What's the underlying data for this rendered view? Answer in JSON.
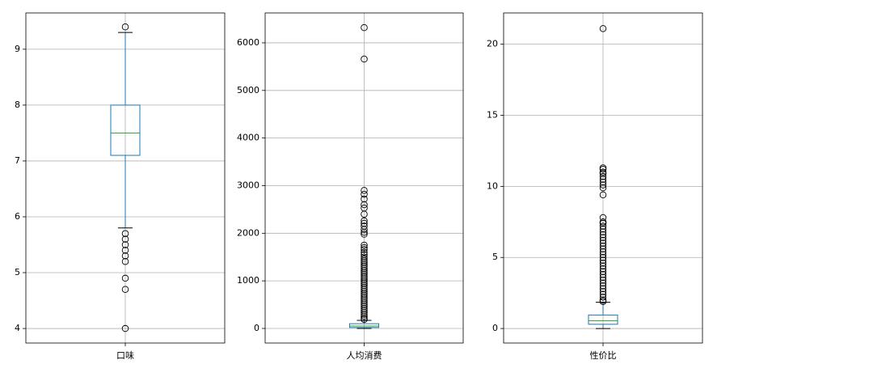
{
  "chart_data": [
    {
      "type": "box",
      "categories": [
        "口味"
      ],
      "ylim": [
        3.74,
        9.65
      ],
      "yticks": [
        4,
        5,
        6,
        7,
        8,
        9
      ],
      "grid": true,
      "box_color": "#1f77b4",
      "median_color": "#2ca02c",
      "boxes": [
        {
          "whislo": 5.8,
          "q1": 7.1,
          "median": 7.5,
          "q3": 8.0,
          "whishi": 9.3,
          "fliers": [
            9.4,
            5.7,
            5.6,
            5.5,
            5.4,
            5.3,
            5.2,
            4.9,
            4.7,
            4.0
          ]
        }
      ]
    },
    {
      "type": "box",
      "categories": [
        "人均消费"
      ],
      "ylim": [
        -306,
        6628
      ],
      "yticks": [
        0,
        1000,
        2000,
        3000,
        4000,
        5000,
        6000
      ],
      "grid": true,
      "box_color": "#1f77b4",
      "median_color": "#2ca02c",
      "boxes": [
        {
          "whislo": 0,
          "q1": 20,
          "median": 50,
          "q3": 100,
          "whishi": 170,
          "fliers": [
            6320,
            5660,
            2900,
            2820,
            2720,
            2600,
            2530,
            2400,
            2260,
            2210,
            2150,
            2080,
            2020,
            1980,
            1750,
            1700,
            1660,
            1600,
            1550,
            1500,
            1460,
            1420,
            1380,
            1340,
            1300,
            1260,
            1220,
            1180,
            1140,
            1100,
            1060,
            1020,
            980,
            940,
            900,
            860,
            820,
            780,
            740,
            700,
            660,
            620,
            580,
            540,
            500,
            460,
            420,
            380,
            340,
            300,
            260,
            220,
            190
          ]
        }
      ]
    },
    {
      "type": "box",
      "categories": [
        "性价比"
      ],
      "ylim": [
        -1.02,
        22.2
      ],
      "yticks": [
        0,
        5,
        10,
        15,
        20
      ],
      "grid": true,
      "box_color": "#1f77b4",
      "median_color": "#2ca02c",
      "boxes": [
        {
          "whislo": 0,
          "q1": 0.3,
          "median": 0.55,
          "q3": 0.95,
          "whishi": 1.85,
          "fliers": [
            21.1,
            11.3,
            11.2,
            11.0,
            10.9,
            10.7,
            10.5,
            10.3,
            10.1,
            9.9,
            9.4,
            7.8,
            7.5,
            7.4,
            7.2,
            7.0,
            6.8,
            6.6,
            6.4,
            6.2,
            6.0,
            5.8,
            5.6,
            5.4,
            5.2,
            5.0,
            4.8,
            4.6,
            4.4,
            4.2,
            4.0,
            3.8,
            3.6,
            3.4,
            3.2,
            3.0,
            2.8,
            2.6,
            2.4,
            2.2,
            2.0,
            1.9
          ]
        }
      ]
    }
  ]
}
